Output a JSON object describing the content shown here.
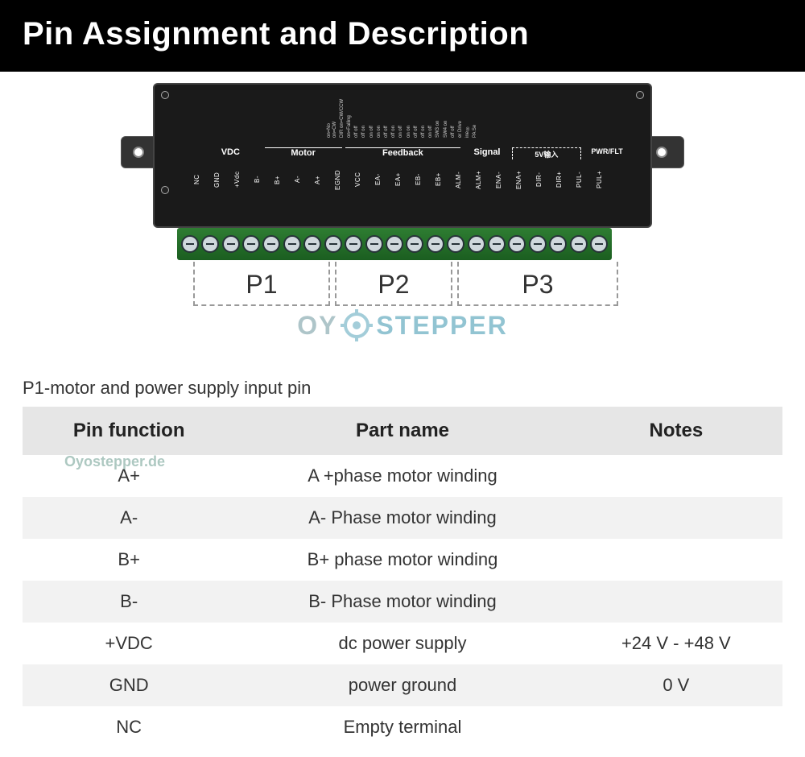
{
  "header": {
    "title": "Pin Assignment and Description"
  },
  "board_sections": {
    "vdc": "VDC",
    "motor": "Motor",
    "feedback": "Feedback",
    "signal": "Signal",
    "five_v": "5V输入",
    "pwr": "PWR/FLT"
  },
  "pin_labels": [
    "NC",
    "GND",
    "+Vdc",
    "B-",
    "B+",
    "A-",
    "A+",
    "EGND",
    "VCC",
    "EA-",
    "EA+",
    "EB-",
    "EB+",
    "ALM-",
    "ALM+",
    "ENA-",
    "ENA+",
    "DIR-",
    "DIR+",
    "PUL-",
    "PUL+"
  ],
  "brackets": {
    "p1": "P1",
    "p2": "P2",
    "p3": "P3"
  },
  "bracket_widths": {
    "p1": 170,
    "p2": 146,
    "p3": 200
  },
  "watermark": {
    "oy": "OY",
    "stepper": "STEPPER",
    "site": "Oyostepper.de"
  },
  "subtitle": "P1-motor and power supply input pin",
  "table": {
    "columns": [
      "Pin function",
      "Part name",
      "Notes"
    ],
    "rows": [
      [
        "A+",
        "A +phase motor winding",
        ""
      ],
      [
        "A-",
        "A- Phase motor winding",
        ""
      ],
      [
        "B+",
        "B+ phase motor winding",
        ""
      ],
      [
        "B-",
        "B- Phase motor winding",
        ""
      ],
      [
        "+VDC",
        "dc power supply",
        "+24 V - +48 V"
      ],
      [
        "GND",
        "power ground",
        "0 V"
      ],
      [
        "NC",
        "Empty terminal",
        ""
      ]
    ],
    "header_bg": "#e6e6e6",
    "alt_bg": "#f2f2f2",
    "header_fontsize": 24,
    "cell_fontsize": 22
  },
  "colors": {
    "header_bg": "#000000",
    "header_text": "#ffffff",
    "board_bg": "#1a1a1a",
    "terminal_bg": "#1b5e20",
    "terminal_screw": "#cfd8dc",
    "bracket_border": "#999999",
    "wm_oy": "#7aa0a6",
    "wm_stepper": "#4a9db5"
  }
}
